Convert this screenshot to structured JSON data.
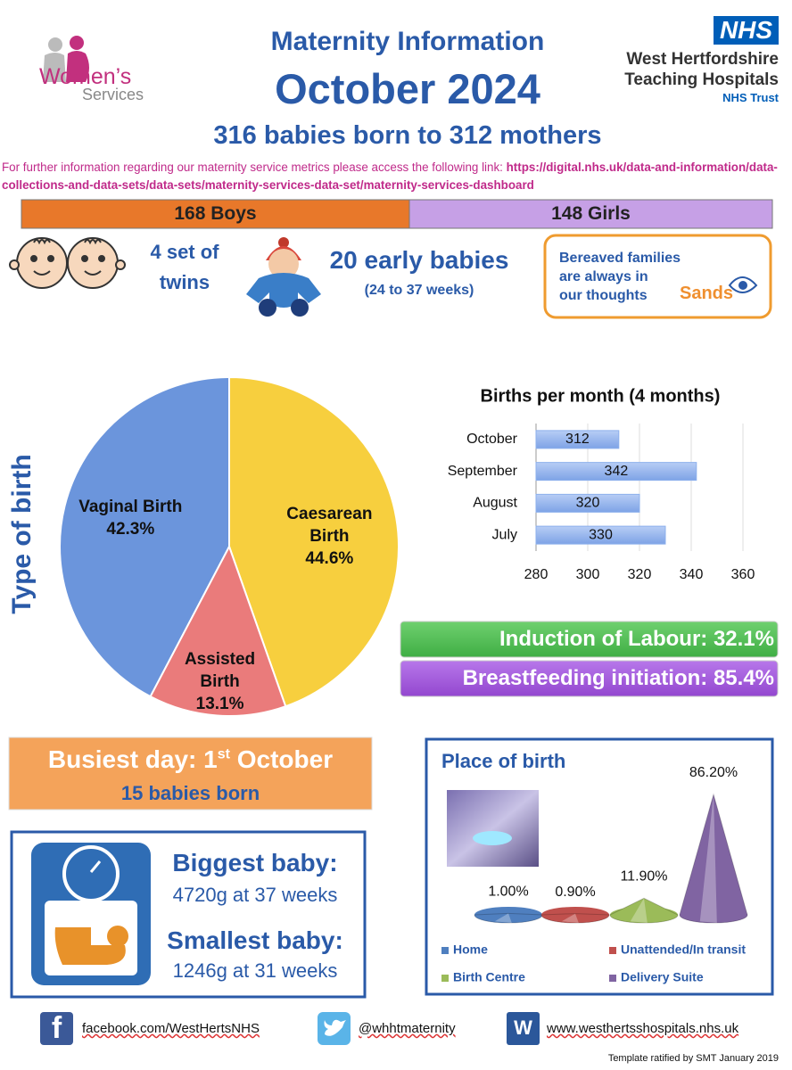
{
  "header": {
    "logo_line1": "Women’s",
    "logo_line2": "Services",
    "title": "Maternity Information",
    "month": "October 2024",
    "subtitle": "316 babies born to 312 mothers",
    "nhs_badge": "NHS",
    "trust_line1": "West Hertfordshire",
    "trust_line2": "Teaching Hospitals",
    "trust_line3": "NHS Trust"
  },
  "info": {
    "text": "For further information regarding our maternity service metrics please access the following link: ",
    "link": "https://digital.nhs.uk/data-and-information/data-collections-and-data-sets/data-sets/maternity-services-data-set/maternity-services-dashboard"
  },
  "gender": {
    "boys": "168 Boys",
    "girls": "148 Girls"
  },
  "highlights": {
    "twins_line1": "4 set of",
    "twins_line2": "twins",
    "early": "20 early babies",
    "early_range": "(24 to 37 weeks)"
  },
  "sands": {
    "line1": "Bereaved families",
    "line2": "are always in",
    "line3": "our thoughts",
    "logo": "Sands"
  },
  "rates": {
    "induction": "Induction of Labour: 32.1%",
    "breastfeeding": "Breastfeeding initiation: 85.4%"
  },
  "busiest": {
    "title_start": "Busiest day: 1",
    "title_sup": "st",
    "title_end": " October",
    "count": "15 babies born"
  },
  "babies": {
    "biggest_title": "Biggest baby:",
    "biggest": "4720g at 37 weeks",
    "smallest_title": "Smallest baby:",
    "smallest": "1246g at 31 weeks"
  },
  "footer": {
    "facebook_icon": "f",
    "facebook": "facebook.com/WestHertsNHS",
    "twitter": "@whhtmaternity",
    "web_icon": "W",
    "website": "www.westhertsshospitals.nhs.uk",
    "note": "Template ratified by SMT January 2019"
  },
  "chart_data": [
    {
      "type": "pie",
      "title": "Type of birth",
      "categories": [
        "Vaginal Birth",
        "Caesarean Birth",
        "Assisted Birth"
      ],
      "values": [
        42.3,
        44.6,
        13.1
      ],
      "value_labels": [
        "42.3%",
        "44.6%",
        "13.1%"
      ],
      "colors": [
        "#6b95dc",
        "#f7cf3e",
        "#ea7b7b"
      ]
    },
    {
      "type": "hbar",
      "title": "Births per month (4 months)",
      "categories": [
        "October",
        "September",
        "August",
        "July"
      ],
      "values": [
        312,
        342,
        320,
        330
      ],
      "color": "#8db0ec",
      "xlim": [
        280,
        360
      ],
      "xticks": [
        280,
        300,
        320,
        340,
        360
      ],
      "grid": true
    },
    {
      "type": "cone",
      "title": "Place of birth",
      "categories": [
        "Home",
        "Unattended/In transit",
        "Birth Centre",
        "Delivery Suite"
      ],
      "values": [
        1.0,
        0.9,
        11.9,
        86.2
      ],
      "value_labels": [
        "1.00%",
        "0.90%",
        "11.90%",
        "86.20%"
      ],
      "colors": [
        "#4f7fbf",
        "#c0504d",
        "#9bbb59",
        "#8064a2"
      ]
    }
  ]
}
